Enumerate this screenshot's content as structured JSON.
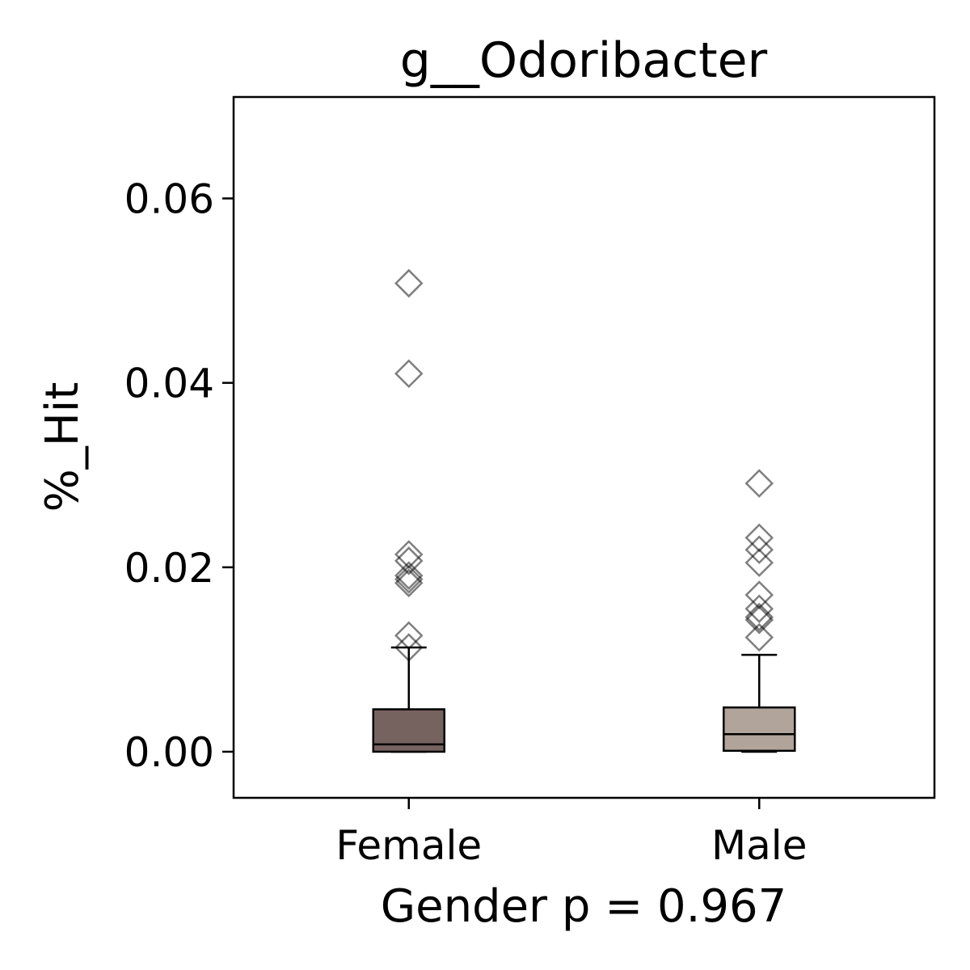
{
  "chart_data": {
    "type": "boxplot",
    "title": "g__Odoribacter",
    "xlabel": "Gender p = 0.967",
    "ylabel": "%_Hit",
    "ylim": [
      -0.005,
      0.071
    ],
    "yticks": [
      0.0,
      0.02,
      0.04,
      0.06
    ],
    "ytick_labels": [
      "0.00",
      "0.02",
      "0.04",
      "0.06"
    ],
    "categories": [
      "Female",
      "Male"
    ],
    "grid": false,
    "legend": "none",
    "boxes": [
      {
        "category": "Female",
        "color": "#76625f",
        "whisker_low": 0.0,
        "q1": 0.0,
        "median": 0.0008,
        "q3": 0.0046,
        "whisker_high": 0.0113,
        "outliers": [
          0.0508,
          0.041,
          0.0214,
          0.0207,
          0.0191,
          0.0187,
          0.0183,
          0.0126,
          0.0113
        ]
      },
      {
        "category": "Male",
        "color": "#b1a49b",
        "whisker_low": 0.0,
        "q1": 0.0001,
        "median": 0.0019,
        "q3": 0.0048,
        "whisker_high": 0.0105,
        "outliers": [
          0.0291,
          0.0232,
          0.0219,
          0.0205,
          0.017,
          0.0155,
          0.0146,
          0.0143,
          0.0124
        ]
      }
    ]
  }
}
